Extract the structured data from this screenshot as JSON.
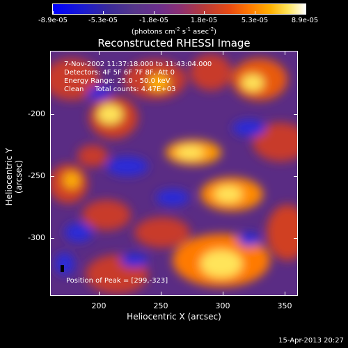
{
  "colorbar": {
    "ticks": [
      "-8.9e-05",
      "-5.3e-05",
      "-1.8e-05",
      "1.8e-05",
      "5.3e-05",
      "8.9e-05"
    ],
    "unit_main": "(photons cm",
    "unit_exp1": "-2",
    "unit_mid": " s",
    "unit_exp2": "-1",
    "unit_end": " asec",
    "unit_exp3": "-2",
    "unit_close": ")"
  },
  "title": "Reconstructed RHESSI Image",
  "annotations": {
    "time": "7-Nov-2002 11:37:18.000 to 11:43:04.000",
    "detectors": "Detectors: 4F 5F 6F 7F 8F, Att 0",
    "energy": "Energy Range: 25.0 - 50.0 keV",
    "clean": "Clean     Total counts: 4.47E+03",
    "peak": "Position of Peak = [299,-323]"
  },
  "axes": {
    "xlabel": "Heliocentric X (arcsec)",
    "ylabel": "Heliocentric Y (arcsec)",
    "xticks": [
      "200",
      "250",
      "300",
      "350"
    ],
    "yticks": [
      "-200",
      "-250",
      "-300"
    ]
  },
  "timestamp": "15-Apr-2013 20:27",
  "colors": {
    "hot": "#ffe45a",
    "warm": "#ff7a00",
    "red": "#c83a2a",
    "cool": "#2a2ad8",
    "purple": "#5a2c84"
  }
}
